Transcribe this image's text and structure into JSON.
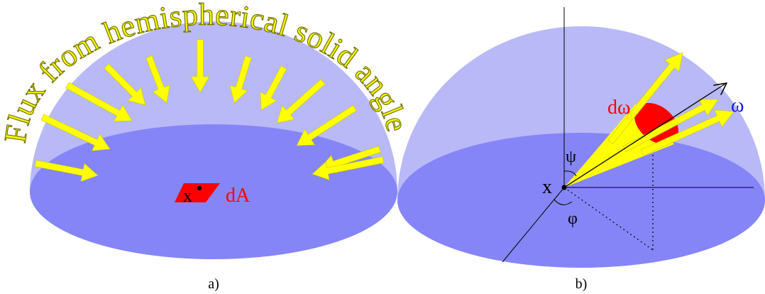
{
  "colors": {
    "dome": "#b9b9f7",
    "disk": "#8585f8",
    "arrow": "#ffff00",
    "arrow_outline": "#c8c800",
    "title_fill": "#f5f500",
    "title_stroke": "#6b6b00",
    "patch": "#ff0000",
    "red_label": "#ff0000",
    "omega_label": "#1a1ae6",
    "line": "#000000"
  },
  "panel_a": {
    "title": "Flux from hemispherical solid angle",
    "point_label": "x",
    "area_label": "dA",
    "caption": "a)",
    "icons": [
      "incoming-flux-arrow",
      "surface-patch",
      "point-dot"
    ]
  },
  "panel_b": {
    "point_label": "x",
    "solid_angle_label": "dω",
    "direction_label": "ω",
    "polar_angle_label": "ψ",
    "azimuth_label": "φ",
    "caption": "b)",
    "icons": [
      "outgoing-flux-arrow",
      "solid-angle-cone",
      "direction-arrow",
      "coordinate-axes"
    ]
  }
}
